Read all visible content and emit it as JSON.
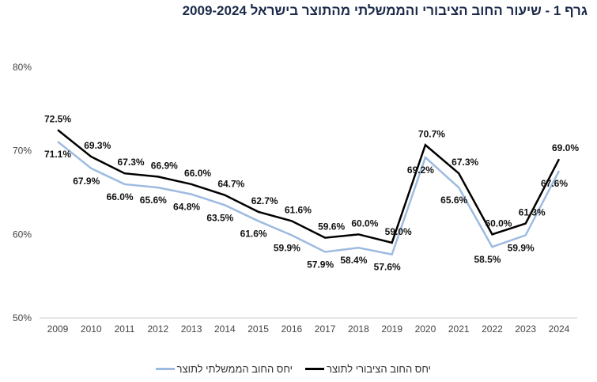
{
  "chart_data": {
    "type": "line",
    "title": "גרף 1 - שיעור החוב הציבורי והממשלתי מהתוצר בישראל 2009-2024",
    "categories": [
      "2009",
      "2010",
      "2011",
      "2012",
      "2013",
      "2014",
      "2015",
      "2016",
      "2017",
      "2018",
      "2019",
      "2020",
      "2021",
      "2022",
      "2023",
      "2024"
    ],
    "ylim": [
      50,
      80
    ],
    "yticks": [
      50,
      60,
      70,
      80
    ],
    "ytick_labels": [
      "50%",
      "60%",
      "70%",
      "80%"
    ],
    "grid": false,
    "legend_placement": "bottom",
    "series": [
      {
        "name": "יחס החוב הציבורי לתוצר",
        "color": "#000000",
        "values": [
          72.5,
          69.3,
          67.3,
          66.9,
          66.0,
          64.7,
          62.7,
          61.6,
          59.6,
          60.0,
          59.0,
          70.7,
          67.3,
          60.0,
          61.3,
          69.0
        ]
      },
      {
        "name": "יחס החוב הממשלתי לתוצר",
        "color": "#9dbbe0",
        "values": [
          71.1,
          67.9,
          66.0,
          65.6,
          64.8,
          63.5,
          61.6,
          59.9,
          57.9,
          58.4,
          57.6,
          69.2,
          65.6,
          58.5,
          59.9,
          67.6
        ]
      }
    ]
  }
}
